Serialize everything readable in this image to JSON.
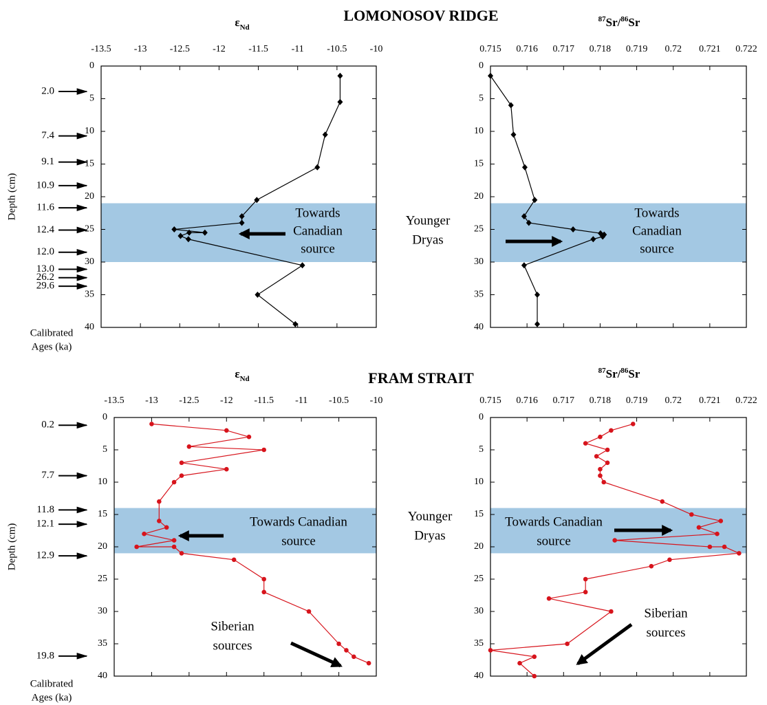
{
  "sections": [
    {
      "heading": "LOMONOSOV RIDGE",
      "younger_dryas": [
        "Younger",
        "Dryas"
      ],
      "y_label": "Depth (cm)",
      "ages_label": [
        "Calibrated",
        "Ages (ka)"
      ],
      "ages": [
        {
          "label": "2.0",
          "depth": 3.9
        },
        {
          "label": "7.4",
          "depth": 10.7
        },
        {
          "label": "9.1",
          "depth": 14.7
        },
        {
          "label": "10.9",
          "depth": 18.3
        },
        {
          "label": "11.6",
          "depth": 21.7
        },
        {
          "label": "12.4",
          "depth": 25.1
        },
        {
          "label": "12.0",
          "depth": 28.5
        },
        {
          "label": "13.0",
          "depth": 31.1
        },
        {
          "label": "26.2",
          "depth": 32.4
        },
        {
          "label": "29.6",
          "depth": 33.7
        }
      ]
    },
    {
      "heading": "FRAM STRAIT",
      "younger_dryas": [
        "Younger",
        "Dryas"
      ],
      "y_label": "Depth (cm)",
      "ages_label": [
        "Calibrated",
        "Ages (ka)"
      ],
      "ages": [
        {
          "label": "0.2",
          "depth": 1.2
        },
        {
          "label": "7.7",
          "depth": 9.0
        },
        {
          "label": "11.8",
          "depth": 14.3
        },
        {
          "label": "12.1",
          "depth": 16.5
        },
        {
          "label": "12.9",
          "depth": 21.4
        },
        {
          "label": "19.8",
          "depth": 36.9
        }
      ]
    }
  ],
  "chart_data": [
    {
      "type": "line",
      "title": [
        {
          "text": "ε"
        },
        {
          "text": "Nd",
          "script": "sub"
        }
      ],
      "color": "#000000",
      "marker": "diamond",
      "x": [
        -10.46,
        -10.46,
        -10.65,
        -10.75,
        -11.52,
        -11.71,
        -11.71,
        -12.57,
        -12.18,
        -12.38,
        -12.49,
        -12.39,
        -10.94,
        -11.51,
        -11.03
      ],
      "y": [
        1.5,
        5.5,
        10.5,
        15.5,
        20.5,
        23,
        24,
        25,
        25.5,
        25.5,
        26,
        26.5,
        30.5,
        35,
        39.5
      ],
      "xlim": [
        -13.5,
        -10
      ],
      "xticks": [
        -13.5,
        -13,
        -12.5,
        -12,
        -11.5,
        -11,
        -10.5,
        -10
      ],
      "ylim": [
        0,
        40
      ],
      "yticks": [
        0,
        5,
        10,
        15,
        20,
        25,
        30,
        35,
        40
      ],
      "y_inverted": true,
      "band": [
        21,
        30
      ],
      "band_color": "#a3c8e3",
      "annotations": [
        {
          "text": [
            "Towards",
            "Canadian",
            "source"
          ]
        }
      ]
    },
    {
      "type": "line",
      "title": [
        {
          "text": "87",
          "script": "super"
        },
        {
          "text": "Sr/"
        },
        {
          "text": "86",
          "script": "super"
        },
        {
          "text": "Sr"
        }
      ],
      "color": "#000000",
      "marker": "diamond",
      "x": [
        0.715,
        0.71556,
        0.71563,
        0.71594,
        0.71621,
        0.71592,
        0.71605,
        0.71726,
        0.71801,
        0.71811,
        0.71807,
        0.71781,
        0.71592,
        0.71628,
        0.71628
      ],
      "y": [
        1.5,
        6,
        10.5,
        15.5,
        20.5,
        23,
        24,
        25,
        25.6,
        25.8,
        26.1,
        26.5,
        30.5,
        35,
        39.5
      ],
      "xlim": [
        0.715,
        0.722
      ],
      "xticks": [
        0.715,
        0.716,
        0.717,
        0.718,
        0.719,
        0.72,
        0.721,
        0.722
      ],
      "ylim": [
        0,
        40
      ],
      "yticks": [
        0,
        5,
        10,
        15,
        20,
        25,
        30,
        35,
        40
      ],
      "y_inverted": true,
      "band": [
        21,
        30
      ],
      "band_color": "#a3c8e3",
      "annotations": [
        {
          "text": [
            "Towards",
            "Canadian",
            "source"
          ]
        }
      ]
    },
    {
      "type": "line",
      "title": [
        {
          "text": "ε"
        },
        {
          "text": "Nd",
          "script": "sub"
        }
      ],
      "color": "#d7141c",
      "marker": "circle",
      "x": [
        -13.0,
        -12.0,
        -11.7,
        -12.5,
        -11.5,
        -12.6,
        -12.0,
        -12.6,
        -12.7,
        -12.9,
        -12.9,
        -12.8,
        -13.1,
        -12.7,
        -13.2,
        -12.7,
        -12.6,
        -11.9,
        -11.5,
        -11.5,
        -10.9,
        -10.5,
        -10.4,
        -10.3,
        -10.1
      ],
      "y": [
        1,
        2,
        3,
        4.5,
        5,
        7,
        8,
        9,
        10,
        13,
        16,
        17,
        18,
        19,
        20,
        20,
        21,
        22,
        25,
        27,
        30,
        35,
        36,
        37,
        38
      ],
      "xlim": [
        -13.5,
        -10
      ],
      "xticks": [
        -13.5,
        -13,
        -12.5,
        -12,
        -11.5,
        -11,
        -10.5,
        -10
      ],
      "ylim": [
        0,
        40
      ],
      "yticks": [
        0,
        5,
        10,
        15,
        20,
        25,
        30,
        35,
        40
      ],
      "y_inverted": true,
      "band": [
        14,
        21
      ],
      "band_color": "#a3c8e3",
      "annotations": [
        {
          "text": [
            "Towards Canadian",
            "source"
          ]
        },
        {
          "text": [
            "Siberian",
            "sources"
          ]
        }
      ]
    },
    {
      "type": "line",
      "title": [
        {
          "text": "87",
          "script": "super"
        },
        {
          "text": "Sr/"
        },
        {
          "text": "86",
          "script": "super"
        },
        {
          "text": "Sr"
        }
      ],
      "color": "#d7141c",
      "marker": "circle",
      "x": [
        0.7189,
        0.7183,
        0.718,
        0.7176,
        0.7182,
        0.7179,
        0.7182,
        0.718,
        0.718,
        0.7181,
        0.7197,
        0.7205,
        0.7213,
        0.7207,
        0.7212,
        0.7184,
        0.721,
        0.7214,
        0.7218,
        0.7199,
        0.7194,
        0.7176,
        0.7176,
        0.7166,
        0.7183,
        0.7171,
        0.715,
        0.7162,
        0.7158,
        0.7162
      ],
      "y": [
        1,
        2,
        3,
        4,
        5,
        6,
        7,
        8,
        9,
        10,
        13,
        15,
        16,
        17,
        18,
        19,
        20,
        20,
        21,
        22,
        23,
        25,
        27,
        28,
        30,
        35,
        36,
        37,
        38,
        40
      ],
      "xlim": [
        0.715,
        0.722
      ],
      "xticks": [
        0.715,
        0.716,
        0.717,
        0.718,
        0.719,
        0.72,
        0.721,
        0.722
      ],
      "ylim": [
        0,
        40
      ],
      "yticks": [
        0,
        5,
        10,
        15,
        20,
        25,
        30,
        35,
        40
      ],
      "y_inverted": true,
      "band": [
        14,
        21
      ],
      "band_color": "#a3c8e3",
      "annotations": [
        {
          "text": [
            "Towards Canadian",
            "source"
          ]
        },
        {
          "text": [
            "Siberian",
            "sources"
          ]
        }
      ]
    }
  ]
}
